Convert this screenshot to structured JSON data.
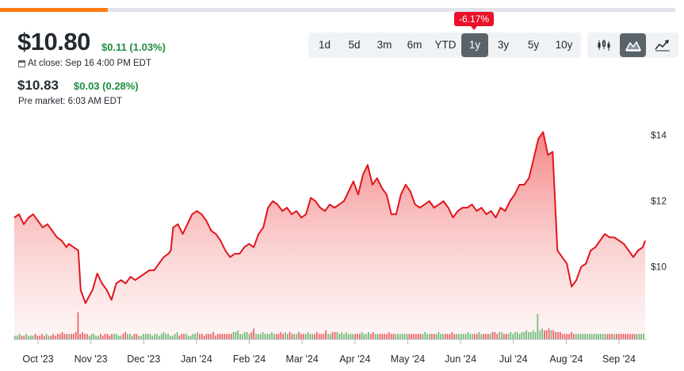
{
  "quote": {
    "price": "$10.80",
    "change": "$0.11 (1.03%)",
    "close_label": "At close: Sep 16 4:00 PM EDT",
    "pre_price": "$10.83",
    "pre_change": "$0.03 (0.28%)",
    "pre_label": "Pre market: 6:03 AM EDT"
  },
  "loading_progress": 0.16,
  "ranges": [
    "1d",
    "5d",
    "3m",
    "6m",
    "YTD",
    "1y",
    "3y",
    "5y",
    "10y"
  ],
  "active_range": "1y",
  "performance_badge": "-6.17%",
  "chart_types": [
    {
      "name": "candlestick-icon",
      "active": false
    },
    {
      "name": "mountain-icon",
      "active": true
    },
    {
      "name": "line-chart-icon",
      "active": false
    }
  ],
  "colors": {
    "line": "#e0161c",
    "fill_top": "#f26d6d",
    "volume_up": "#21a33b",
    "volume_down": "#e0161c",
    "badge": "#eb0f29",
    "active_button": "#5b636a"
  },
  "chart_data": {
    "type": "area",
    "x_axis": "date",
    "y_ticks": [
      "$14",
      "$12",
      "$10"
    ],
    "x_ticks": [
      "Oct '23",
      "Nov '23",
      "Dec '23",
      "Jan '24",
      "Feb '24",
      "Mar '24",
      "Apr '24",
      "May '24",
      "Jun '24",
      "Jul '24",
      "Aug '24",
      "Sep '24"
    ],
    "ylim": [
      7.8,
      14.5
    ],
    "series": [
      {
        "values": [
          [
            0,
            11.5
          ],
          [
            2,
            11.6
          ],
          [
            4,
            11.3
          ],
          [
            6,
            11.5
          ],
          [
            8,
            11.6
          ],
          [
            10,
            11.4
          ],
          [
            12,
            11.2
          ],
          [
            14,
            11.3
          ],
          [
            16,
            11.1
          ],
          [
            18,
            10.9
          ],
          [
            20,
            10.8
          ],
          [
            22,
            10.6
          ],
          [
            23,
            10.7
          ],
          [
            25,
            10.6
          ],
          [
            27,
            10.5
          ],
          [
            28,
            9.3
          ],
          [
            30,
            8.9
          ],
          [
            33,
            9.3
          ],
          [
            35,
            9.8
          ],
          [
            37,
            9.5
          ],
          [
            39,
            9.3
          ],
          [
            41,
            9.0
          ],
          [
            43,
            9.5
          ],
          [
            45,
            9.6
          ],
          [
            47,
            9.5
          ],
          [
            49,
            9.7
          ],
          [
            51,
            9.6
          ],
          [
            53,
            9.7
          ],
          [
            55,
            9.8
          ],
          [
            57,
            9.9
          ],
          [
            59,
            9.9
          ],
          [
            61,
            10.1
          ],
          [
            63,
            10.3
          ],
          [
            65,
            10.4
          ],
          [
            66,
            10.5
          ],
          [
            67,
            11.2
          ],
          [
            69,
            11.3
          ],
          [
            71,
            11.0
          ],
          [
            73,
            11.3
          ],
          [
            75,
            11.6
          ],
          [
            77,
            11.7
          ],
          [
            79,
            11.6
          ],
          [
            81,
            11.4
          ],
          [
            83,
            11.1
          ],
          [
            85,
            11.0
          ],
          [
            87,
            10.8
          ],
          [
            89,
            10.5
          ],
          [
            91,
            10.3
          ],
          [
            93,
            10.4
          ],
          [
            95,
            10.4
          ],
          [
            97,
            10.6
          ],
          [
            99,
            10.7
          ],
          [
            101,
            10.6
          ],
          [
            103,
            11.0
          ],
          [
            105,
            11.2
          ],
          [
            107,
            11.8
          ],
          [
            109,
            12.0
          ],
          [
            111,
            11.9
          ],
          [
            113,
            11.7
          ],
          [
            115,
            11.8
          ],
          [
            117,
            11.6
          ],
          [
            119,
            11.7
          ],
          [
            121,
            11.5
          ],
          [
            123,
            11.6
          ],
          [
            125,
            12.1
          ],
          [
            127,
            12.0
          ],
          [
            129,
            11.8
          ],
          [
            131,
            11.7
          ],
          [
            133,
            11.9
          ],
          [
            135,
            11.8
          ],
          [
            137,
            11.9
          ],
          [
            139,
            12.0
          ],
          [
            141,
            12.3
          ],
          [
            143,
            12.6
          ],
          [
            145,
            12.2
          ],
          [
            147,
            12.8
          ],
          [
            149,
            13.1
          ],
          [
            151,
            12.5
          ],
          [
            153,
            12.7
          ],
          [
            155,
            12.4
          ],
          [
            157,
            12.2
          ],
          [
            159,
            11.6
          ],
          [
            161,
            11.6
          ],
          [
            163,
            12.2
          ],
          [
            165,
            12.5
          ],
          [
            167,
            12.3
          ],
          [
            169,
            11.9
          ],
          [
            171,
            11.8
          ],
          [
            173,
            11.9
          ],
          [
            175,
            12.0
          ],
          [
            177,
            11.8
          ],
          [
            179,
            11.9
          ],
          [
            181,
            12.0
          ],
          [
            183,
            11.8
          ],
          [
            185,
            11.5
          ],
          [
            187,
            11.7
          ],
          [
            189,
            11.8
          ],
          [
            191,
            11.8
          ],
          [
            193,
            11.9
          ],
          [
            195,
            11.7
          ],
          [
            197,
            11.8
          ],
          [
            199,
            11.6
          ],
          [
            201,
            11.7
          ],
          [
            203,
            11.5
          ],
          [
            205,
            11.8
          ],
          [
            207,
            11.7
          ],
          [
            209,
            12.0
          ],
          [
            211,
            12.2
          ],
          [
            213,
            12.5
          ],
          [
            215,
            12.5
          ],
          [
            217,
            12.7
          ],
          [
            219,
            13.3
          ],
          [
            221,
            13.9
          ],
          [
            223,
            14.1
          ],
          [
            225,
            13.4
          ],
          [
            227,
            13.5
          ],
          [
            229,
            10.5
          ],
          [
            231,
            10.3
          ],
          [
            233,
            10.1
          ],
          [
            235,
            9.4
          ],
          [
            237,
            9.6
          ],
          [
            239,
            10.0
          ],
          [
            241,
            10.1
          ],
          [
            243,
            10.5
          ],
          [
            245,
            10.6
          ],
          [
            247,
            10.8
          ],
          [
            249,
            11.0
          ],
          [
            251,
            10.9
          ],
          [
            253,
            10.9
          ],
          [
            255,
            10.8
          ],
          [
            257,
            10.7
          ],
          [
            259,
            10.5
          ],
          [
            261,
            10.3
          ],
          [
            263,
            10.5
          ],
          [
            265,
            10.6
          ],
          [
            266,
            10.8
          ]
        ]
      }
    ],
    "volume": [
      2,
      2,
      3,
      2,
      2,
      3,
      2,
      2,
      2,
      3,
      2,
      2,
      3,
      2,
      3,
      2,
      2,
      3,
      2,
      3,
      3,
      4,
      3,
      3,
      3,
      3,
      3,
      4,
      15,
      3,
      4,
      3,
      3,
      2,
      3,
      3,
      2,
      2,
      3,
      2,
      3,
      3,
      2,
      3,
      3,
      3,
      2,
      2,
      3,
      4,
      3,
      3,
      2,
      3,
      3,
      2,
      2,
      3,
      3,
      3,
      3,
      2,
      3,
      3,
      2,
      3,
      4,
      3,
      3,
      2,
      2,
      3,
      4,
      2,
      3,
      3,
      3,
      2,
      2,
      3,
      3,
      4,
      3,
      3,
      2,
      3,
      3,
      3,
      4,
      2,
      3,
      3,
      3,
      3,
      3,
      3,
      3,
      4,
      4,
      5,
      3,
      3,
      4,
      4,
      3,
      4,
      6,
      3,
      3,
      3,
      4,
      3,
      3,
      3,
      4,
      3,
      3,
      3,
      4,
      3,
      4,
      3,
      4,
      3,
      3,
      3,
      4,
      3,
      3,
      3,
      4,
      3,
      3,
      3,
      4,
      3,
      3,
      3,
      5,
      3,
      3,
      4,
      4,
      4,
      3,
      4,
      3,
      4,
      3,
      3,
      3,
      3,
      3,
      3,
      4,
      3,
      3,
      4,
      3,
      4,
      3,
      3,
      3,
      3,
      3,
      3,
      4,
      3,
      3,
      3,
      3,
      3,
      3,
      3,
      3,
      3,
      3,
      3,
      3,
      3,
      3,
      3,
      4,
      3,
      3,
      3,
      3,
      3,
      4,
      3,
      3,
      3,
      3,
      3,
      4,
      3,
      3,
      3,
      3,
      3,
      3,
      4,
      3,
      3,
      3,
      3,
      4,
      3,
      3,
      3,
      3,
      3,
      4,
      4,
      3,
      4,
      4,
      3,
      3,
      3,
      4,
      3,
      4,
      4,
      3,
      4,
      4,
      5,
      4,
      4,
      5,
      4,
      14,
      5,
      6,
      5,
      5,
      6,
      5,
      5,
      4,
      4,
      4,
      3,
      3,
      3,
      3,
      4,
      3,
      3,
      3,
      3,
      3,
      3,
      3,
      3,
      3,
      3,
      3,
      3,
      3,
      3,
      3,
      3,
      3,
      3,
      3,
      3,
      3,
      3,
      3,
      3,
      3,
      3,
      3,
      3,
      3,
      3,
      3,
      3
    ]
  }
}
